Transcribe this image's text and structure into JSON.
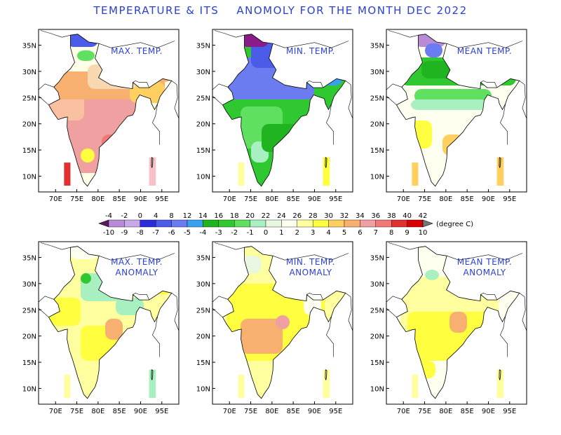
{
  "title": "TEMPERATURE & ITS    ANOMOLY FOR THE MONTH DEC 2022",
  "panels": [
    {
      "id": "max",
      "title_lines": [
        "MAX. TEMP."
      ],
      "mode": "abs",
      "theme": "max"
    },
    {
      "id": "min",
      "title_lines": [
        "MIN. TEMP."
      ],
      "mode": "abs",
      "theme": "min"
    },
    {
      "id": "mean",
      "title_lines": [
        "MEAN TEMP."
      ],
      "mode": "abs",
      "theme": "mean"
    },
    {
      "id": "max-anom",
      "title_lines": [
        "MAX. TEMP.",
        "ANOMALY"
      ],
      "mode": "anom",
      "theme": "maxa"
    },
    {
      "id": "min-anom",
      "title_lines": [
        "MIN. TEMP.",
        "ANOMALY"
      ],
      "mode": "anom",
      "theme": "mina"
    },
    {
      "id": "mean-anom",
      "title_lines": [
        "MEAN TEMP.",
        "ANOMALY"
      ],
      "mode": "anom",
      "theme": "meana"
    }
  ],
  "axes": {
    "lon_labels": [
      "70E",
      "75E",
      "80E",
      "85E",
      "90E",
      "95E"
    ],
    "lat_labels": [
      "35N",
      "30N",
      "25N",
      "20N",
      "15N",
      "10N"
    ]
  },
  "colorbar": {
    "abs_labels": [
      "-4",
      "-2",
      "0",
      "4",
      "8",
      "12",
      "14",
      "16",
      "18",
      "20",
      "22",
      "24",
      "26",
      "28",
      "30",
      "32",
      "34",
      "36",
      "38",
      "40",
      "42"
    ],
    "anom_labels": [
      "-10",
      "-9",
      "-8",
      "-7",
      "-6",
      "-5",
      "-4",
      "-3",
      "-2",
      "-1",
      "0",
      "1",
      "2",
      "3",
      "4",
      "5",
      "6",
      "7",
      "8",
      "9",
      "10"
    ],
    "unit_label": "(degree C)",
    "colors": [
      "#8b1a8b",
      "#a04fc0",
      "#b98ad6",
      "#c8a8e8",
      "#2b2bd8",
      "#4a5ce8",
      "#6a7cf0",
      "#3aa0f0",
      "#21b421",
      "#30c830",
      "#60e060",
      "#a8f0c0",
      "#e8f8e0",
      "#fffff0",
      "#ffffa0",
      "#ffff40",
      "#ffd060",
      "#f8b070",
      "#f0a0a0",
      "#f07878",
      "#e03030",
      "#d80000",
      "#b80000",
      "#901010",
      "#700000"
    ]
  }
}
